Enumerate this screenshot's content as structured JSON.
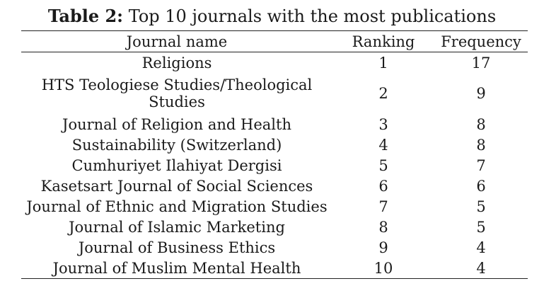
{
  "caption": {
    "label": "Table 2:",
    "text": "Top 10 journals with the most publications"
  },
  "columns": [
    "Journal name",
    "Ranking",
    "Frequency"
  ],
  "rows": [
    {
      "journal": "Religions",
      "ranking": "1",
      "frequency": "17"
    },
    {
      "journal": "HTS Teologiese Studies/Theological Studies",
      "ranking": "2",
      "frequency": "9"
    },
    {
      "journal": "Journal of Religion and Health",
      "ranking": "3",
      "frequency": "8"
    },
    {
      "journal": "Sustainability (Switzerland)",
      "ranking": "4",
      "frequency": "8"
    },
    {
      "journal": "Cumhuriyet Ilahiyat Dergisi",
      "ranking": "5",
      "frequency": "7"
    },
    {
      "journal": "Kasetsart Journal of Social Sciences",
      "ranking": "6",
      "frequency": "6"
    },
    {
      "journal": "Journal of Ethnic and Migration Studies",
      "ranking": "7",
      "frequency": "5"
    },
    {
      "journal": "Journal of Islamic Marketing",
      "ranking": "8",
      "frequency": "5"
    },
    {
      "journal": "Journal of Business Ethics",
      "ranking": "9",
      "frequency": "4"
    },
    {
      "journal": "Journal of Muslim Mental Health",
      "ranking": "10",
      "frequency": "4"
    }
  ]
}
